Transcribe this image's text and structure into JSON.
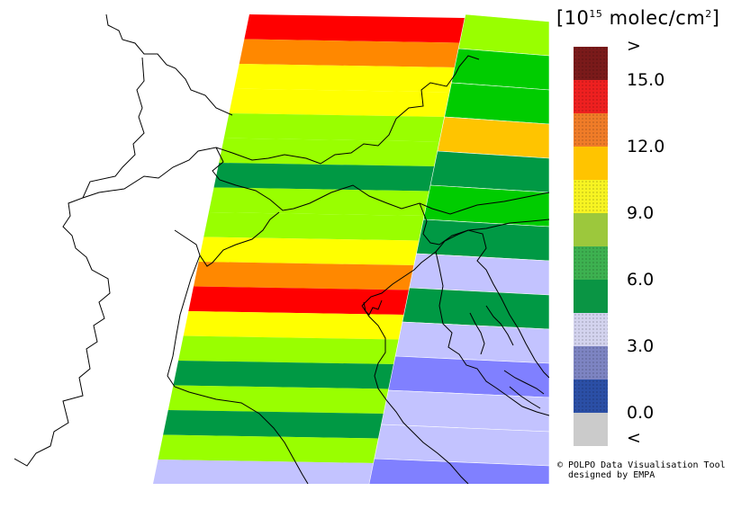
{
  "legend": {
    "unit_prefix": "[10",
    "unit_exponent": "15",
    "unit_suffix": " molec/cm",
    "unit_sq": "2",
    "unit_close": "]",
    "classes": [
      {
        "color": "#7a1a1a",
        "pattern": "dots"
      },
      {
        "color": "#ee2020",
        "pattern": "dots"
      },
      {
        "color": "#f07c28",
        "pattern": "dots"
      },
      {
        "color": "#ffc400",
        "pattern": "solid"
      },
      {
        "color": "#f7f422",
        "pattern": "dots"
      },
      {
        "color": "#9cc83c",
        "pattern": "solid"
      },
      {
        "color": "#3db150",
        "pattern": "dots"
      },
      {
        "color": "#0a9544",
        "pattern": "solid"
      },
      {
        "color": "#d3d3ee",
        "pattern": "dots"
      },
      {
        "color": "#7d84c2",
        "pattern": "dots"
      },
      {
        "color": "#2b4fa6",
        "pattern": "dots"
      },
      {
        "color": "#cbcbcb",
        "pattern": "solid"
      }
    ],
    "ticks": [
      ">",
      "15.0",
      "12.0",
      "9.0",
      "6.0",
      "3.0",
      "0.0",
      "<"
    ]
  },
  "credit": {
    "line1": "© POLPO Data Visualisation Tool",
    "line2": "designed by EMPA"
  },
  "map": {
    "colors": {
      "red": "#ff0000",
      "orange": "#ff8800",
      "yellow": "#ffff00",
      "light_green": "#99ff00",
      "bright_green": "#00cc00",
      "dark_green": "#009944",
      "gold": "#ffc400",
      "lavender": "#c3c3ff",
      "periwinkle": "#8080ff"
    },
    "west_swath_rows": [
      "red",
      "orange",
      "yellow",
      "yellow",
      "light_green",
      "light_green",
      "dark_green",
      "light_green",
      "light_green",
      "yellow",
      "orange",
      "red",
      "yellow",
      "light_green",
      "dark_green",
      "light_green",
      "dark_green",
      "light_green",
      "lavender"
    ],
    "east_swath_rows": [
      "light_green",
      "bright_green",
      "bright_green",
      "gold",
      "dark_green",
      "bright_green",
      "dark_green",
      "lavender",
      "dark_green",
      "lavender",
      "periwinkle",
      "lavender",
      "lavender",
      "periwinkle"
    ]
  }
}
